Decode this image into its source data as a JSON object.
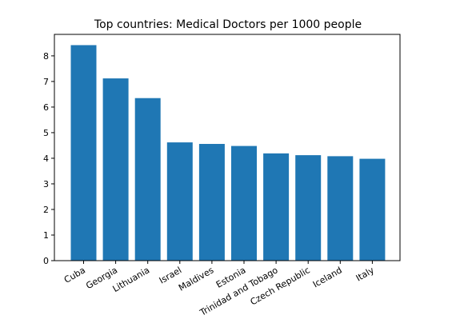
{
  "chart_data": {
    "type": "bar",
    "title": "Top countries: Medical Doctors per 1000 people",
    "xlabel": "",
    "ylabel": "",
    "categories": [
      "Cuba",
      "Georgia",
      "Lithuania",
      "Israel",
      "Maldives",
      "Estonia",
      "Trinidad and Tobago",
      "Czech Republic",
      "Iceland",
      "Italy"
    ],
    "values": [
      8.42,
      7.12,
      6.35,
      4.62,
      4.56,
      4.48,
      4.19,
      4.12,
      4.08,
      3.98
    ],
    "ylim": [
      0,
      8.84
    ],
    "yticks": [
      "0",
      "1",
      "2",
      "3",
      "4",
      "5",
      "6",
      "7",
      "8"
    ],
    "grid": false,
    "bar_color": "#1f77b4",
    "axis_color": "#000000"
  }
}
